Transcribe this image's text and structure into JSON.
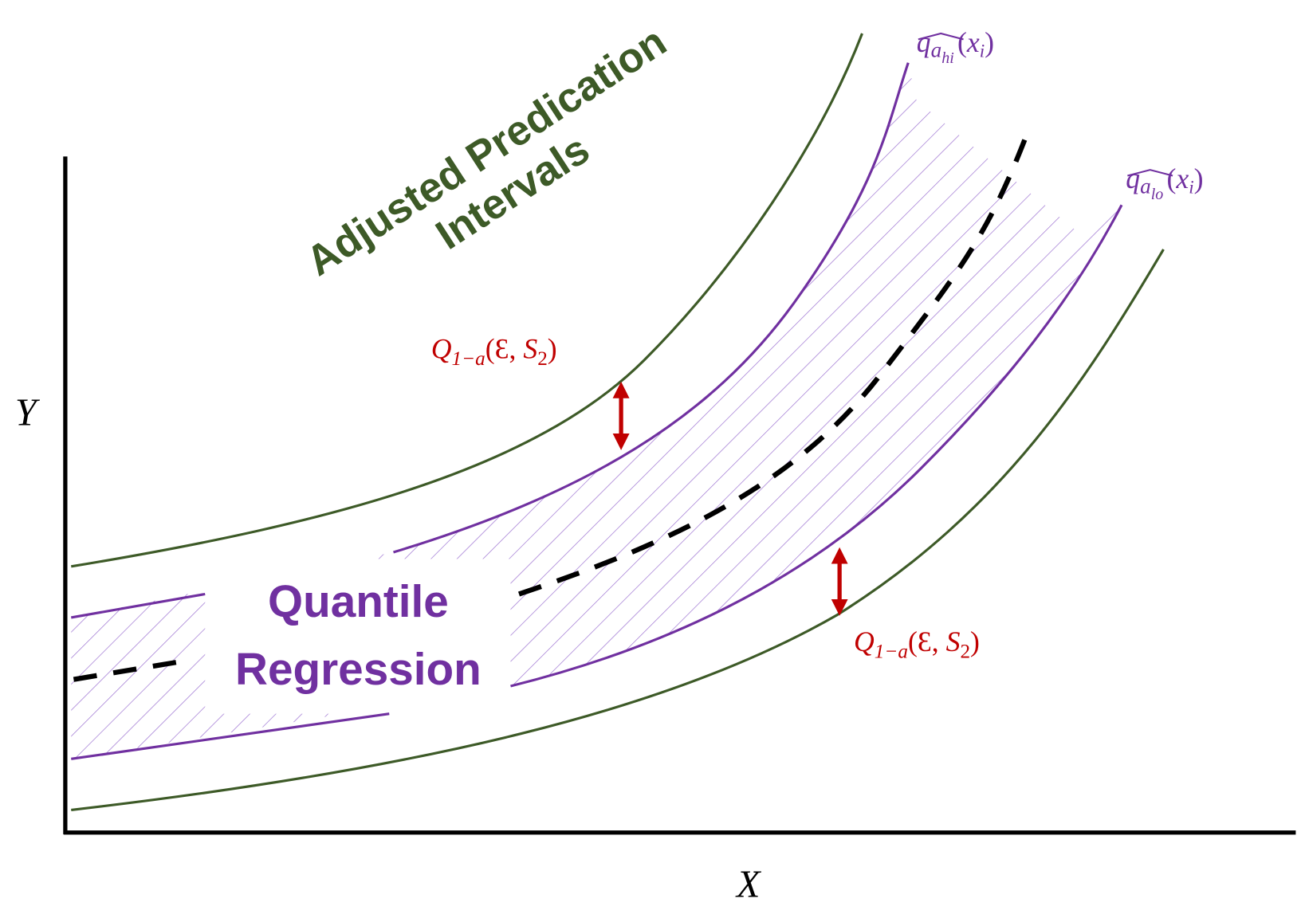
{
  "title": {
    "lines": [
      "Adjusted Predication",
      "Intervals"
    ]
  },
  "band_label": {
    "lines": [
      "Quantile",
      "Regression"
    ]
  },
  "axes": {
    "x": "X",
    "y": "Y"
  },
  "upper_quantile_label": {
    "q": "q",
    "a": "a",
    "sub": "hi",
    "open": "(",
    "x": "x",
    "i": "i",
    "close": ")"
  },
  "lower_quantile_label": {
    "q": "q",
    "a": "a",
    "sub": "lo",
    "open": "(",
    "x": "x",
    "i": "i",
    "close": ")"
  },
  "conformal_labels": [
    {
      "Q": "Q",
      "sub": "1−a",
      "open": "(",
      "eps": "Ɛ, ",
      "s": "S",
      "two": "2",
      "close": ")"
    },
    {
      "Q": "Q",
      "sub": "1−a",
      "open": "(",
      "eps": "Ɛ, ",
      "s": "S",
      "two": "2",
      "close": ")"
    }
  ]
}
